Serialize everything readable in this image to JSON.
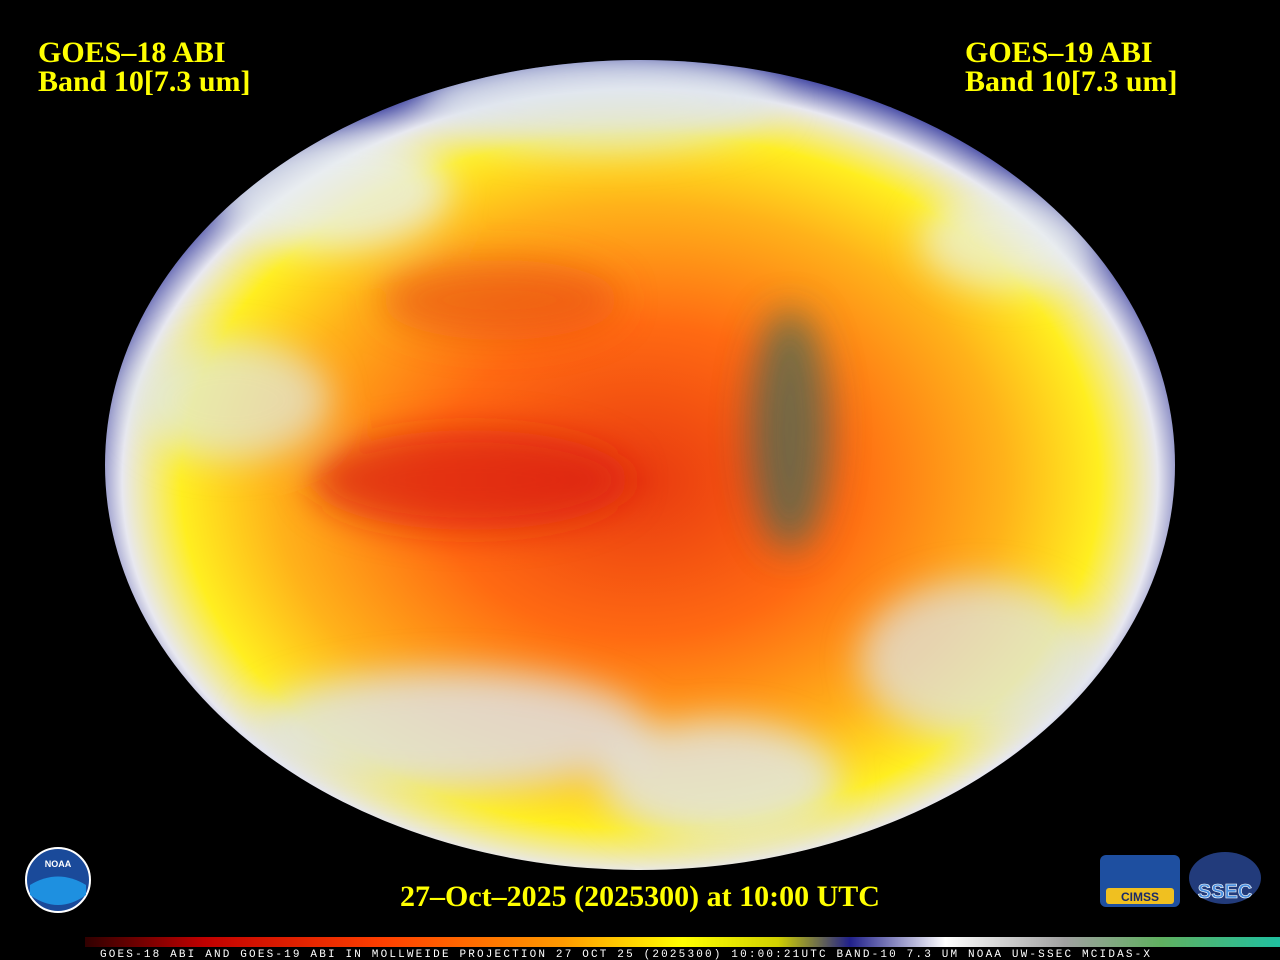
{
  "left_label": {
    "satellite": "GOES–18 ABI",
    "band": "Band 10[7.3 um]"
  },
  "right_label": {
    "satellite": "GOES–19 ABI",
    "band": "Band 10[7.3 um]"
  },
  "timestamp": "27–Oct–2025 (2025300) at 10:00 UTC",
  "colorbar_caption": "GOES-18 ABI AND GOES-19 ABI IN MOLLWEIDE PROJECTION 27 OCT 25 (2025300) 10:00:21UTC BAND-10 7.3 UM NOAA UW-SSEC MCIDAS-X",
  "logos": {
    "noaa": "NOAA",
    "cimss": "CIMSS",
    "ssec": "SSEC"
  }
}
